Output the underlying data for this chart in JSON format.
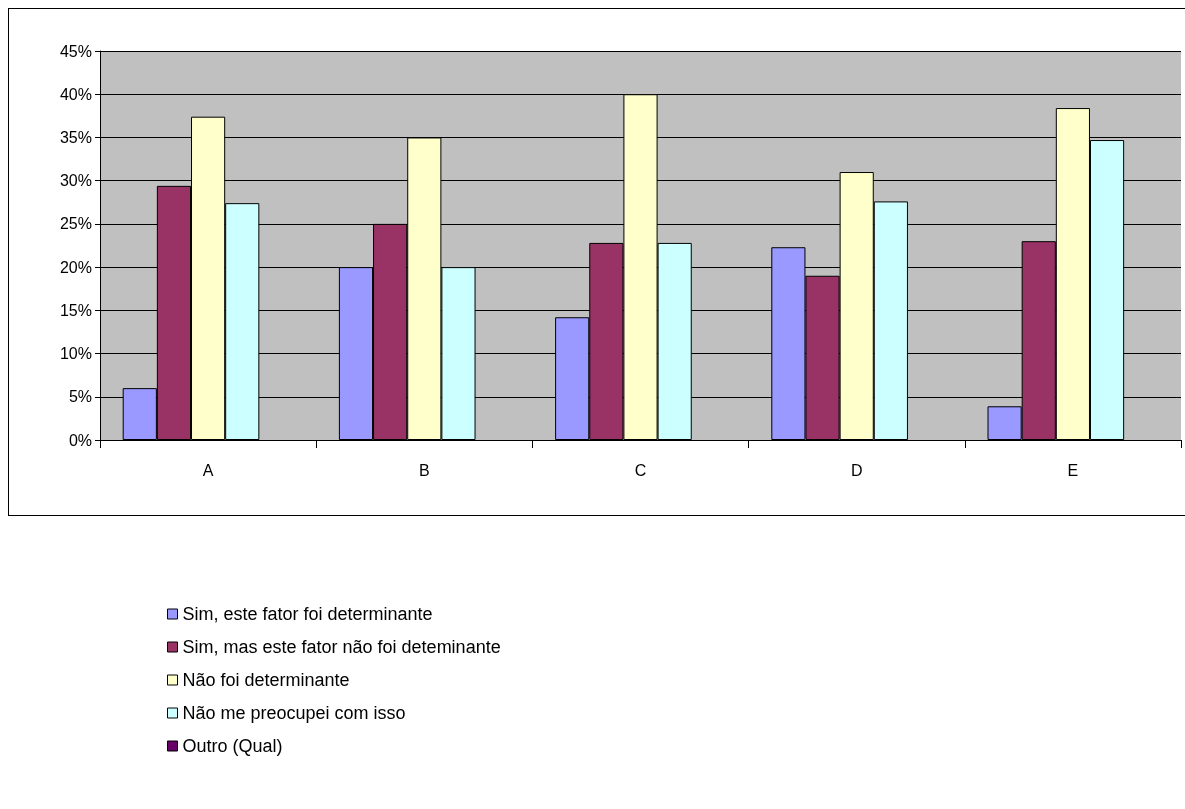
{
  "chart_data": {
    "type": "bar",
    "categories": [
      "A",
      "B",
      "C",
      "D",
      "E"
    ],
    "series": [
      {
        "name": "Sim, este fator foi determinante",
        "color": "#9999ff",
        "values": [
          6,
          20,
          14.2,
          22.3,
          3.9
        ]
      },
      {
        "name": "Sim, mas este fator não foi deteminante",
        "color": "#993366",
        "values": [
          29.4,
          25,
          22.8,
          19,
          23
        ]
      },
      {
        "name": "Não foi determinante",
        "color": "#ffffcc",
        "values": [
          37.4,
          35,
          40,
          31,
          38.4
        ]
      },
      {
        "name": "Não me preocupei com isso",
        "color": "#ccffff",
        "values": [
          27.4,
          20,
          22.8,
          27.6,
          34.7
        ]
      },
      {
        "name": "Outro (Qual)",
        "color": "#660066",
        "values": [
          0,
          0,
          0,
          0,
          0
        ]
      }
    ],
    "ylim": [
      0,
      45
    ],
    "yticks": [
      {
        "value": 0,
        "label": "0%"
      },
      {
        "value": 5,
        "label": "5%"
      },
      {
        "value": 10,
        "label": "10%"
      },
      {
        "value": 15,
        "label": "15%"
      },
      {
        "value": 20,
        "label": "20%"
      },
      {
        "value": 25,
        "label": "25%"
      },
      {
        "value": 30,
        "label": "30%"
      },
      {
        "value": 35,
        "label": "35%"
      },
      {
        "value": 40,
        "label": "40%"
      },
      {
        "value": 45,
        "label": "45%"
      }
    ],
    "grid": "y",
    "legend": "bottom left"
  }
}
